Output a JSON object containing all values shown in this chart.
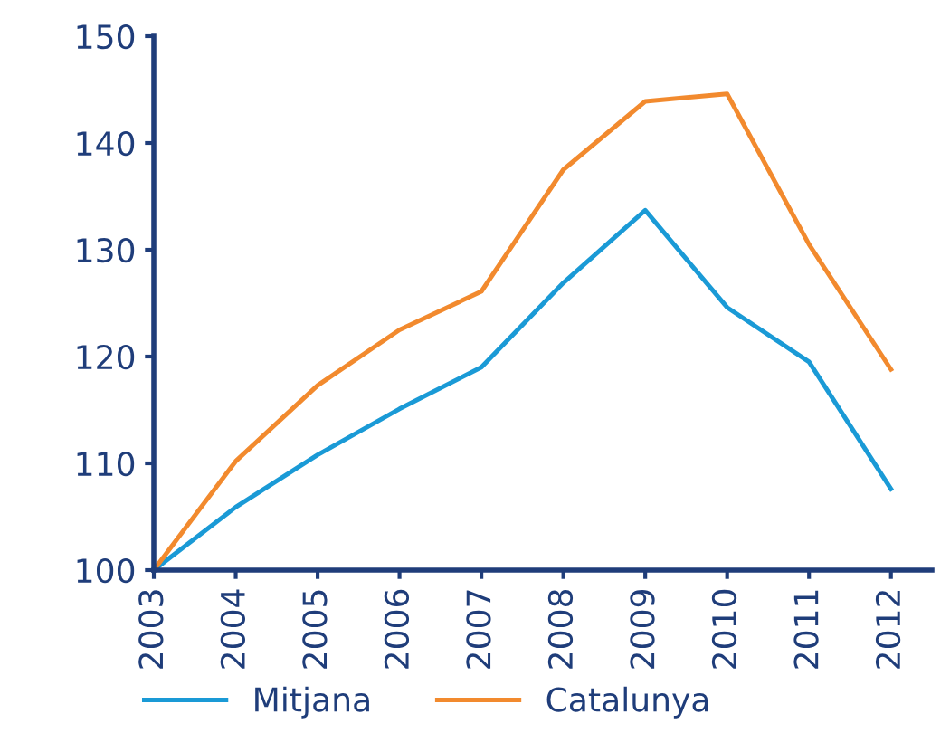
{
  "chart_data": {
    "type": "line",
    "categories": [
      "2003",
      "2004",
      "2005",
      "2006",
      "2007",
      "2008",
      "2009",
      "2010",
      "2011",
      "2012"
    ],
    "series": [
      {
        "name": "Mitjana",
        "color": "#1a9ad6",
        "values": [
          100,
          105.9,
          110.8,
          115.1,
          119.0,
          126.9,
          133.7,
          124.6,
          119.5,
          107.6
        ]
      },
      {
        "name": "Catalunya",
        "color": "#f28a2e",
        "values": [
          100,
          110.2,
          117.3,
          122.5,
          126.1,
          137.5,
          143.9,
          144.6,
          130.5,
          118.8
        ]
      }
    ],
    "ylim": [
      100,
      150
    ],
    "yticks": [
      100,
      110,
      120,
      130,
      140,
      150
    ],
    "grid": false,
    "legend": "bottom",
    "marker": "none",
    "line_style": "solid"
  }
}
